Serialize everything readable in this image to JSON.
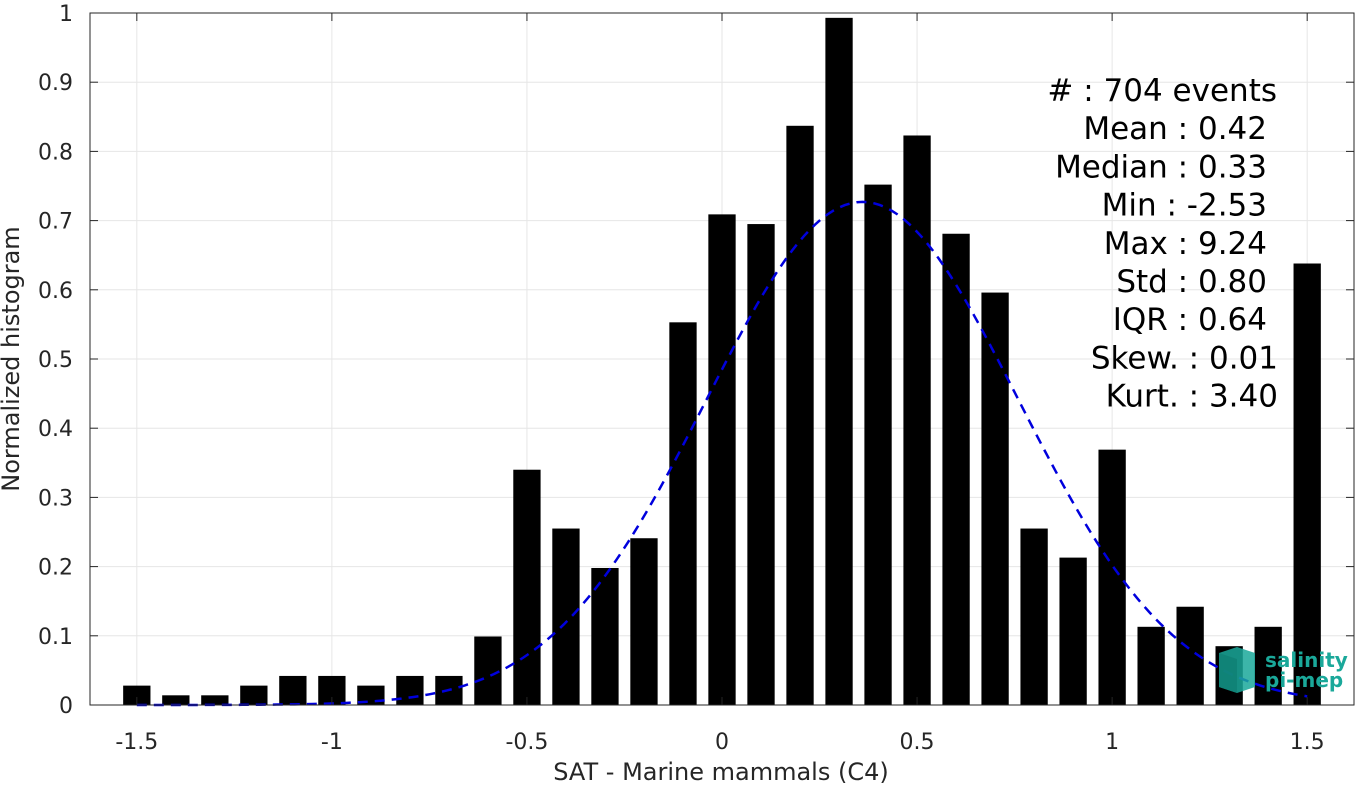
{
  "chart_data": {
    "type": "bar",
    "xlabel": "SAT - Marine mammals (C4)",
    "ylabel": "Normalized histogram",
    "xlim": [
      -1.62,
      1.62
    ],
    "ylim": [
      0,
      1
    ],
    "xticks": [
      -1.5,
      -1,
      -0.5,
      0,
      0.5,
      1,
      1.5
    ],
    "xtick_labels": [
      "-1.5",
      "-1",
      "-0.5",
      "0",
      "0.5",
      "1",
      "1.5"
    ],
    "yticks": [
      0,
      0.1,
      0.2,
      0.3,
      0.4,
      0.5,
      0.6,
      0.7,
      0.8,
      0.9,
      1
    ],
    "ytick_labels": [
      "0",
      "0.1",
      "0.2",
      "0.3",
      "0.4",
      "0.5",
      "0.6",
      "0.7",
      "0.8",
      "0.9",
      "1"
    ],
    "grid": true,
    "bar_width": 0.07,
    "bins": [
      {
        "x": -1.5,
        "y": 0.028
      },
      {
        "x": -1.4,
        "y": 0.014
      },
      {
        "x": -1.3,
        "y": 0.014
      },
      {
        "x": -1.2,
        "y": 0.028
      },
      {
        "x": -1.1,
        "y": 0.042
      },
      {
        "x": -1.0,
        "y": 0.042
      },
      {
        "x": -0.9,
        "y": 0.028
      },
      {
        "x": -0.8,
        "y": 0.042
      },
      {
        "x": -0.7,
        "y": 0.042
      },
      {
        "x": -0.6,
        "y": 0.099
      },
      {
        "x": -0.5,
        "y": 0.34
      },
      {
        "x": -0.4,
        "y": 0.255
      },
      {
        "x": -0.3,
        "y": 0.198
      },
      {
        "x": -0.2,
        "y": 0.241
      },
      {
        "x": -0.1,
        "y": 0.553
      },
      {
        "x": 0.0,
        "y": 0.709
      },
      {
        "x": 0.1,
        "y": 0.695
      },
      {
        "x": 0.2,
        "y": 0.837
      },
      {
        "x": 0.3,
        "y": 0.993
      },
      {
        "x": 0.4,
        "y": 0.752
      },
      {
        "x": 0.5,
        "y": 0.823
      },
      {
        "x": 0.6,
        "y": 0.681
      },
      {
        "x": 0.7,
        "y": 0.596
      },
      {
        "x": 0.8,
        "y": 0.255
      },
      {
        "x": 0.9,
        "y": 0.213
      },
      {
        "x": 1.0,
        "y": 0.369
      },
      {
        "x": 1.1,
        "y": 0.113
      },
      {
        "x": 1.2,
        "y": 0.142
      },
      {
        "x": 1.3,
        "y": 0.085
      },
      {
        "x": 1.4,
        "y": 0.113
      },
      {
        "x": 1.5,
        "y": 0.638
      }
    ],
    "fit_curve": {
      "style": "dashed",
      "color": "#0000dd",
      "shape": "gaussian",
      "peak_x": 0.36,
      "peak_y": 0.727,
      "sigma": 0.4,
      "x_range": [
        -1.5,
        1.5
      ]
    },
    "stats": [
      "#  : 704 events",
      "Mean : 0.42",
      "Median : 0.33",
      "Min : -2.53",
      "Max : 9.24",
      "Std : 0.80",
      "IQR : 0.64",
      "Skew. : 0.01",
      "Kurt. : 3.40"
    ],
    "bar_color": "#000000",
    "grid_color": "#e6e6e6",
    "axis_color": "#262626"
  },
  "logo": {
    "line1": "salinity",
    "line2": "pi-mep",
    "color": "#1aa89a"
  }
}
